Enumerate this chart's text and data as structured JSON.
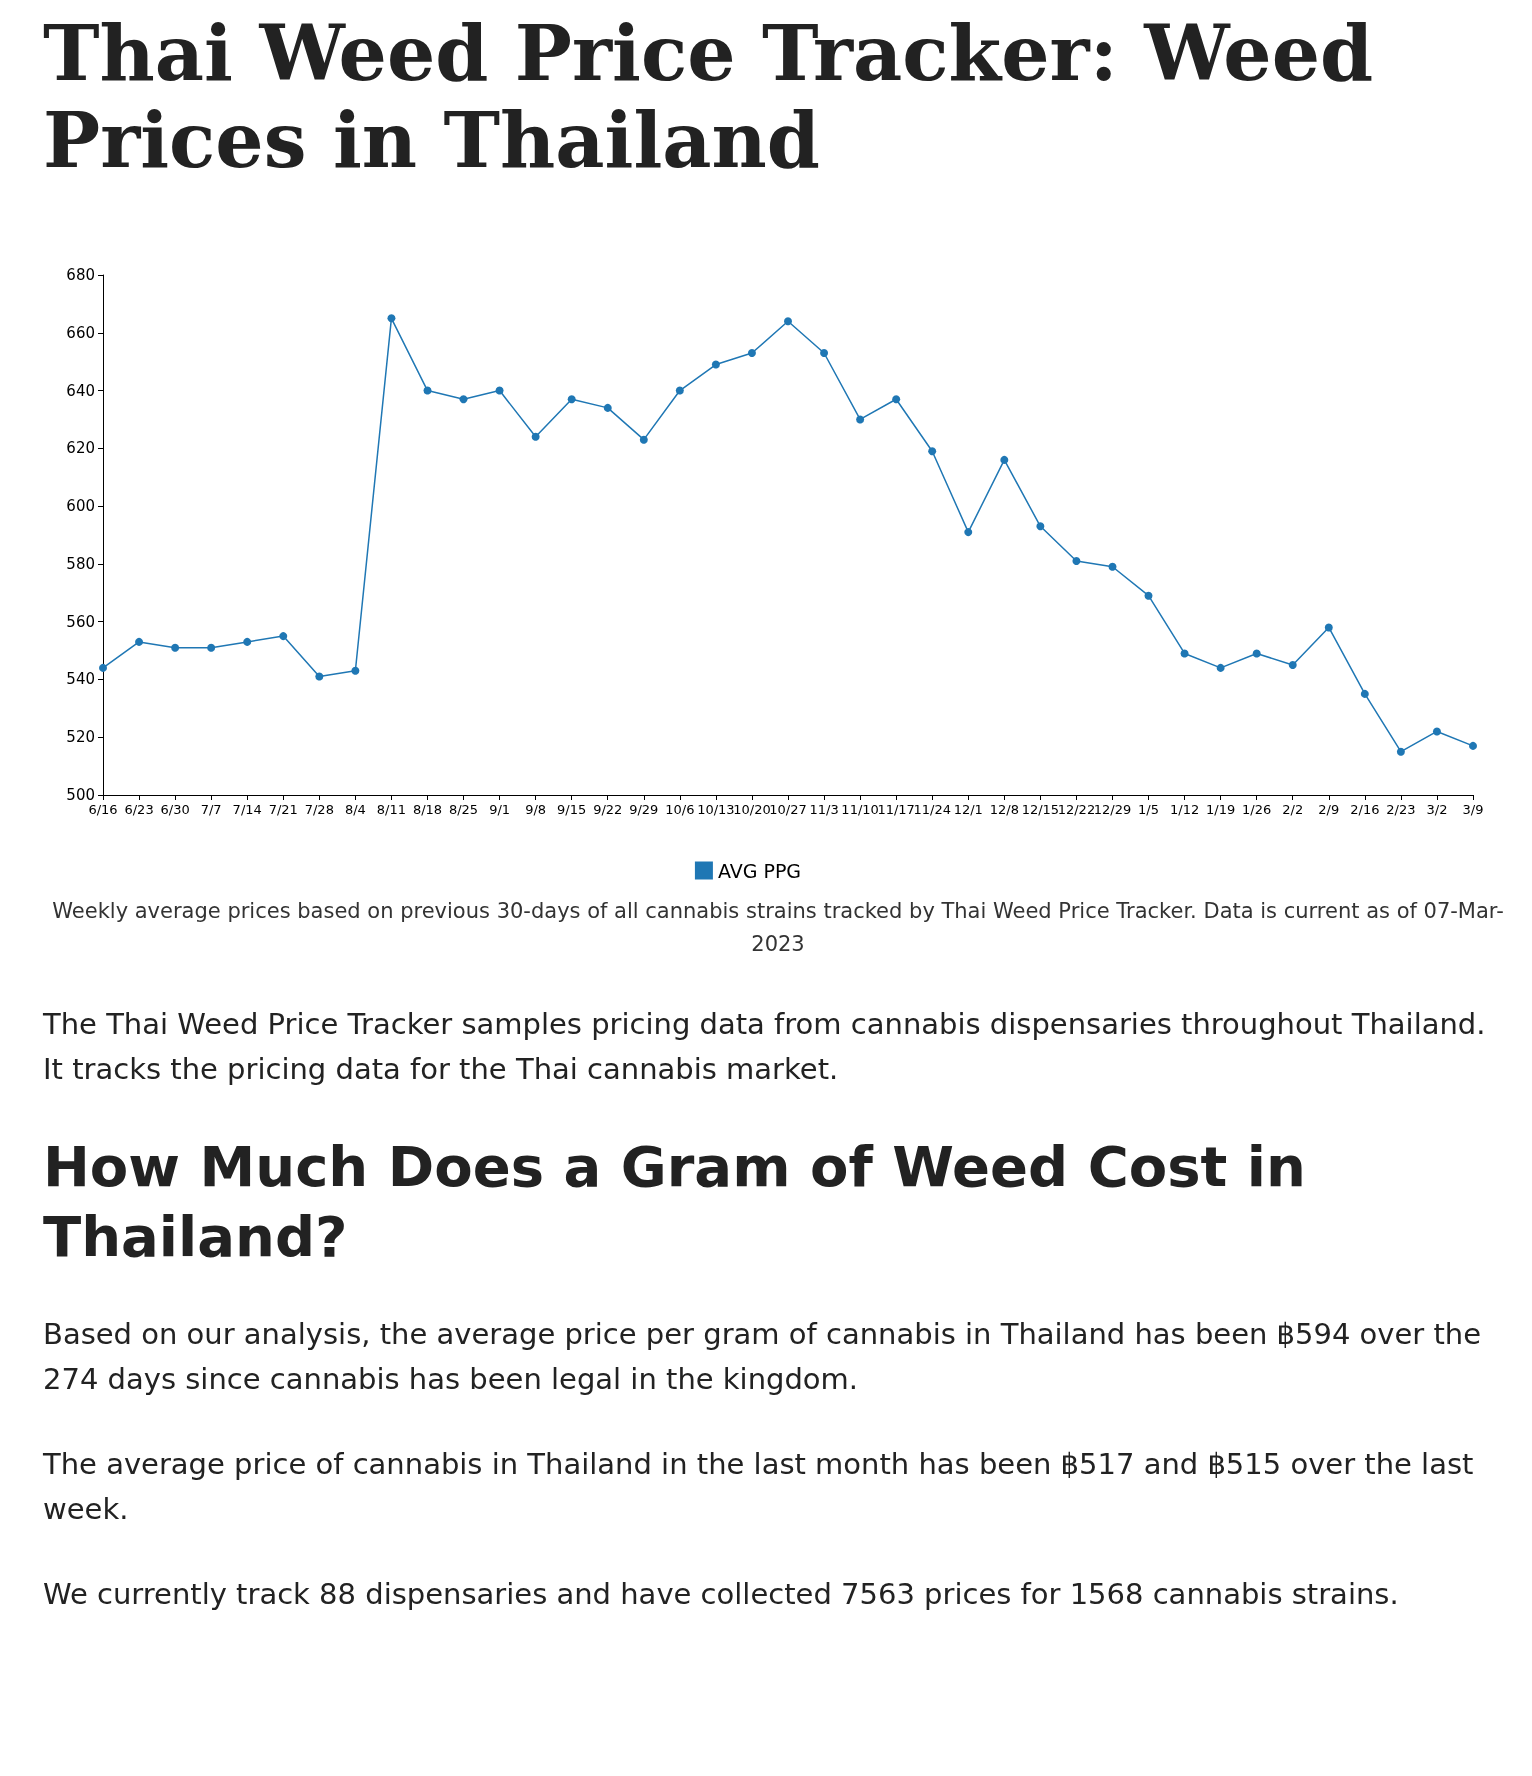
{
  "chart_data": {
    "type": "line",
    "title": "Thai Weed Price Tracker: Weed Prices in Thailand",
    "categories": [
      "6/16",
      "6/23",
      "6/30",
      "7/7",
      "7/14",
      "7/21",
      "7/28",
      "8/4",
      "8/11",
      "8/18",
      "8/25",
      "9/1",
      "9/8",
      "9/15",
      "9/22",
      "9/29",
      "10/6",
      "10/13",
      "10/20",
      "10/27",
      "11/3",
      "11/10",
      "11/17",
      "11/24",
      "12/1",
      "12/8",
      "12/15",
      "12/22",
      "12/29",
      "1/5",
      "1/12",
      "1/19",
      "1/26",
      "2/2",
      "2/9",
      "2/16",
      "2/23",
      "3/2",
      "3/9"
    ],
    "series": [
      {
        "name": "AVG PPG",
        "color": "#1f77b4",
        "values": [
          544,
          553,
          551,
          551,
          553,
          555,
          541,
          543,
          665,
          640,
          637,
          640,
          624,
          637,
          634,
          623,
          640,
          649,
          653,
          664,
          653,
          630,
          637,
          619,
          591,
          616,
          593,
          581,
          579,
          569,
          549,
          544,
          549,
          545,
          558,
          535,
          515,
          522,
          517
        ]
      }
    ],
    "ylim": [
      500,
      680
    ],
    "yticks": [
      500,
      520,
      540,
      560,
      580,
      600,
      620,
      640,
      660,
      680
    ],
    "grid": false,
    "legend": "bottom",
    "marker": "circle",
    "line_style": "solid",
    "annotations": [
      "Weekly average prices based on previous 30-days of all cannabis strains tracked by Thai Weed Price Tracker. Data is current as of 07-Mar-2023",
      "The Thai Weed Price Tracker samples pricing data from cannabis dispensaries throughout Thailand. It tracks the pricing data for the Thai cannabis market.",
      "How Much Does a Gram of Weed Cost in Thailand?",
      "Based on our analysis, the average price per gram of cannabis in Thailand has been ฿594 over the 274 days since cannabis has been legal in the kingdom.",
      "The average price of cannabis in Thailand in the last month has been ฿517 and ฿515 over the last week.",
      "We currently track 88 dispensaries and have collected 7563 prices for 1568 cannabis strains."
    ]
  }
}
